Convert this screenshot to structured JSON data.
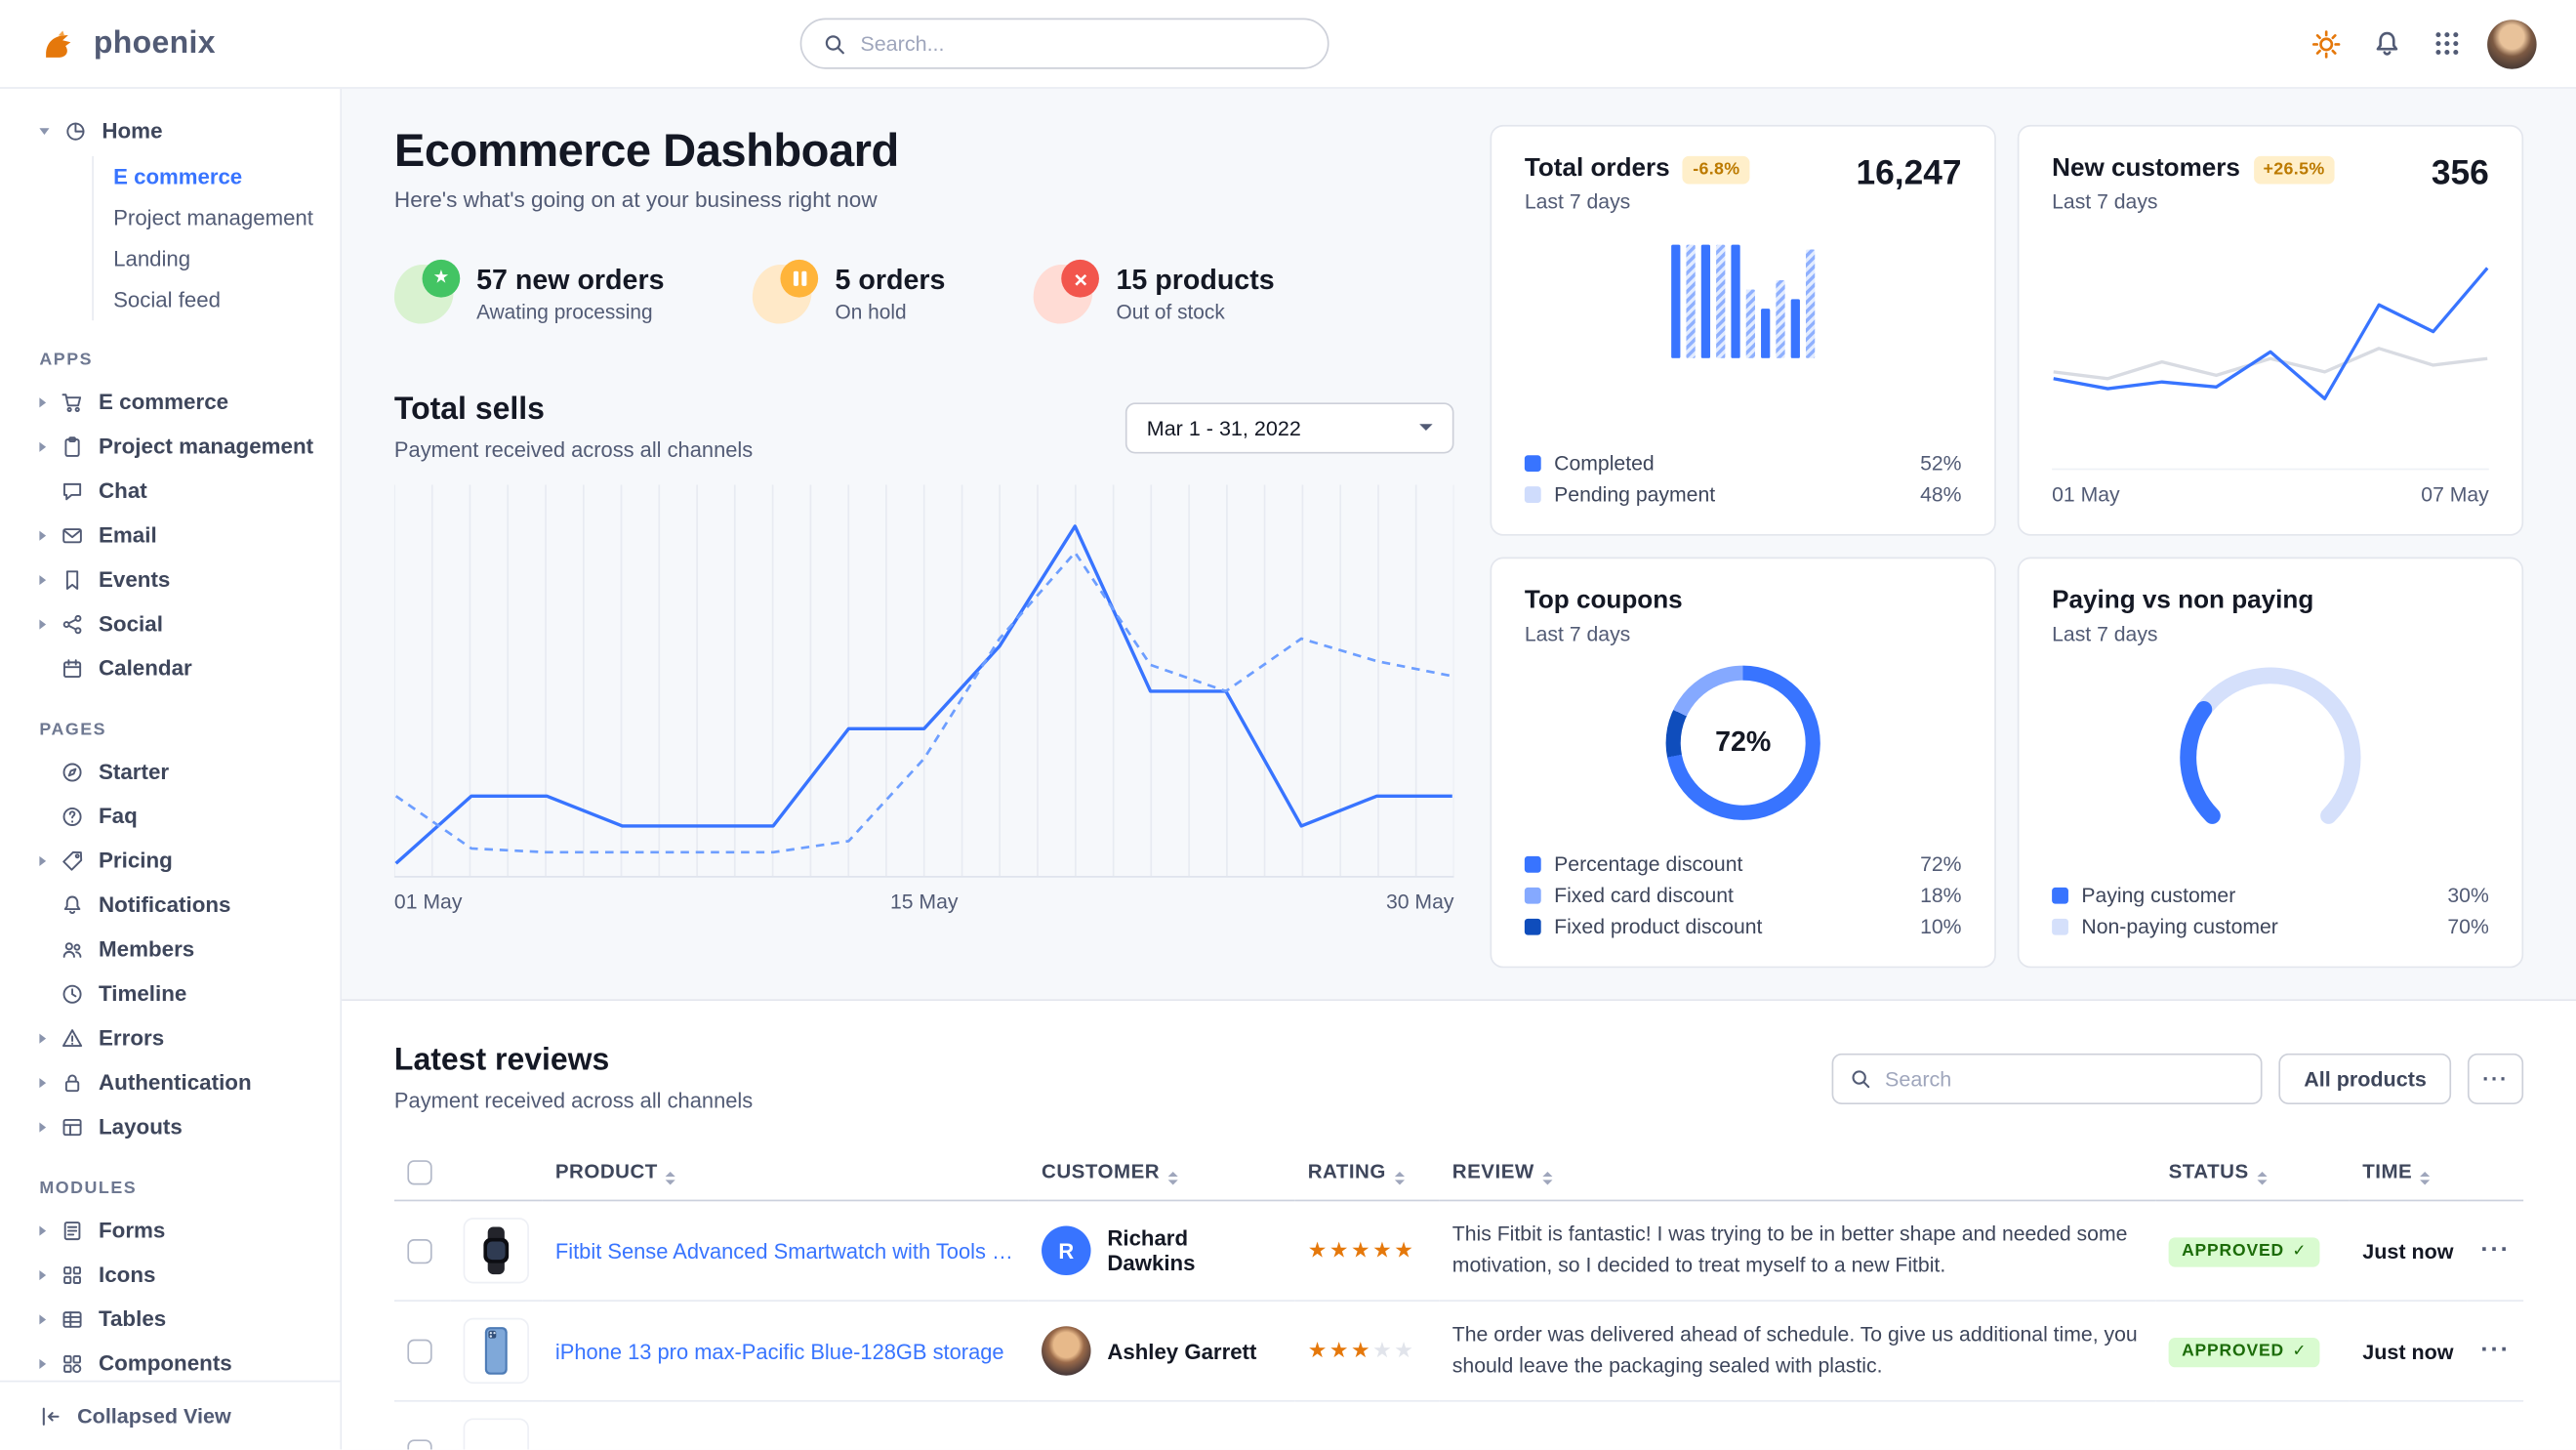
{
  "brand": {
    "name": "phoenix"
  },
  "topbar": {
    "search_placeholder": "Search..."
  },
  "sidebar": {
    "home": {
      "label": "Home",
      "children": [
        {
          "label": "E commerce"
        },
        {
          "label": "Project management"
        },
        {
          "label": "Landing"
        },
        {
          "label": "Social feed"
        }
      ]
    },
    "sections": [
      {
        "title": "APPS",
        "items": [
          {
            "label": "E commerce"
          },
          {
            "label": "Project management"
          },
          {
            "label": "Chat"
          },
          {
            "label": "Email"
          },
          {
            "label": "Events"
          },
          {
            "label": "Social"
          },
          {
            "label": "Calendar"
          }
        ]
      },
      {
        "title": "PAGES",
        "items": [
          {
            "label": "Starter"
          },
          {
            "label": "Faq"
          },
          {
            "label": "Pricing"
          },
          {
            "label": "Notifications"
          },
          {
            "label": "Members"
          },
          {
            "label": "Timeline"
          },
          {
            "label": "Errors"
          },
          {
            "label": "Authentication"
          },
          {
            "label": "Layouts"
          }
        ]
      },
      {
        "title": "MODULES",
        "items": [
          {
            "label": "Forms"
          },
          {
            "label": "Icons"
          },
          {
            "label": "Tables"
          },
          {
            "label": "Components"
          }
        ]
      }
    ],
    "collapse_label": "Collapsed View"
  },
  "header": {
    "title": "Ecommerce Dashboard",
    "subtitle": "Here's what's going on at your business right now"
  },
  "stats": [
    {
      "value": "57 new orders",
      "caption": "Awating processing"
    },
    {
      "value": "5 orders",
      "caption": "On hold"
    },
    {
      "value": "15 products",
      "caption": "Out of stock"
    }
  ],
  "total_sells": {
    "title": "Total sells",
    "subtitle": "Payment received across all channels",
    "date_range": "Mar 1 - 31, 2022",
    "x_labels": [
      "01 May",
      "15 May",
      "30 May"
    ]
  },
  "cards": {
    "total_orders": {
      "title": "Total orders",
      "badge": "-6.8%",
      "period": "Last 7 days",
      "value": "16,247",
      "legend": [
        {
          "label": "Completed",
          "value": "52%"
        },
        {
          "label": "Pending payment",
          "value": "48%"
        }
      ]
    },
    "new_customers": {
      "title": "New customers",
      "badge": "+26.5%",
      "period": "Last 7 days",
      "value": "356",
      "x_start": "01 May",
      "x_end": "07 May"
    },
    "top_coupons": {
      "title": "Top coupons",
      "period": "Last 7 days",
      "center_value": "72%",
      "legend": [
        {
          "label": "Percentage discount",
          "value": "72%"
        },
        {
          "label": "Fixed card discount",
          "value": "18%"
        },
        {
          "label": "Fixed product discount",
          "value": "10%"
        }
      ]
    },
    "paying": {
      "title": "Paying vs non paying",
      "period": "Last 7 days",
      "legend": [
        {
          "label": "Paying customer",
          "value": "30%"
        },
        {
          "label": "Non-paying customer",
          "value": "70%"
        }
      ]
    }
  },
  "chart_data": [
    {
      "name": "total_sells",
      "type": "line",
      "x_labels": [
        "01 May",
        "15 May",
        "30 May"
      ],
      "series": [
        {
          "name": "current",
          "color": "#3874ff",
          "width": 2,
          "values": [
            2,
            20,
            20,
            12,
            12,
            12,
            38,
            38,
            60,
            92,
            48,
            48,
            12,
            20,
            20
          ]
        },
        {
          "name": "previous",
          "color": "#6d9eff",
          "width": 1.6,
          "dash": "5 4",
          "values": [
            20,
            6,
            5,
            5,
            5,
            5,
            8,
            30,
            62,
            85,
            55,
            48,
            62,
            56,
            52
          ]
        }
      ]
    },
    {
      "name": "total_orders",
      "type": "bar",
      "completed_pct": 52,
      "pending_pct": 48,
      "values": [
        96,
        96,
        96,
        96,
        96,
        58,
        42,
        66,
        50,
        92
      ]
    },
    {
      "name": "new_customers",
      "type": "line",
      "x_labels": [
        "01 May",
        "07 May"
      ],
      "series": [
        {
          "name": "previous",
          "color": "#d8dbe2",
          "width": 2,
          "values": [
            34,
            30,
            40,
            32,
            42,
            34,
            48,
            38,
            42
          ]
        },
        {
          "name": "current",
          "color": "#3874ff",
          "width": 2,
          "values": [
            30,
            24,
            28,
            25,
            46,
            18,
            74,
            58,
            96
          ]
        }
      ]
    },
    {
      "name": "top_coupons",
      "type": "donut",
      "center": "72%",
      "segments": [
        {
          "label": "Percentage discount",
          "pct": 72,
          "color": "#3874ff"
        },
        {
          "label": "Fixed product discount",
          "pct": 10,
          "color": "#0f4dbc"
        },
        {
          "label": "Fixed card discount",
          "pct": 18,
          "color": "#85a9ff"
        }
      ]
    },
    {
      "name": "paying_gauge",
      "type": "gauge",
      "paying_pct": 30,
      "non_paying_pct": 70,
      "colors": {
        "paying": "#3874ff",
        "non_paying": "#d5e0fb"
      }
    }
  ],
  "reviews": {
    "title": "Latest reviews",
    "subtitle": "Payment received across all channels",
    "search_placeholder": "Search",
    "filter_label": "All products",
    "more_label": "···",
    "columns": [
      "PRODUCT",
      "CUSTOMER",
      "RATING",
      "REVIEW",
      "STATUS",
      "TIME"
    ],
    "rows": [
      {
        "product": "Fitbit Sense Advanced Smartwatch with Tools fo...",
        "customer": "Richard Dawkins",
        "initial": "R",
        "rating": 5,
        "review": "This Fitbit is fantastic! I was trying to be in better shape and needed some motivation, so I decided to treat myself to a new Fitbit.",
        "status": "APPROVED",
        "time": "Just now"
      },
      {
        "product": "iPhone 13 pro max-Pacific Blue-128GB storage",
        "customer": "Ashley Garrett",
        "rating": 3,
        "review": "The order was delivered ahead of schedule. To give us additional time, you should leave the packaging sealed with plastic.",
        "status": "APPROVED",
        "time": "Just now"
      }
    ]
  },
  "colors": {
    "primary": "#3874ff",
    "star_on": "#e5780b",
    "badge_warning_bg": "#ffefca",
    "badge_warning_text": "#bc7a00",
    "status_approved_bg": "#d9fbd0",
    "status_approved_text": "#1c6c09"
  }
}
